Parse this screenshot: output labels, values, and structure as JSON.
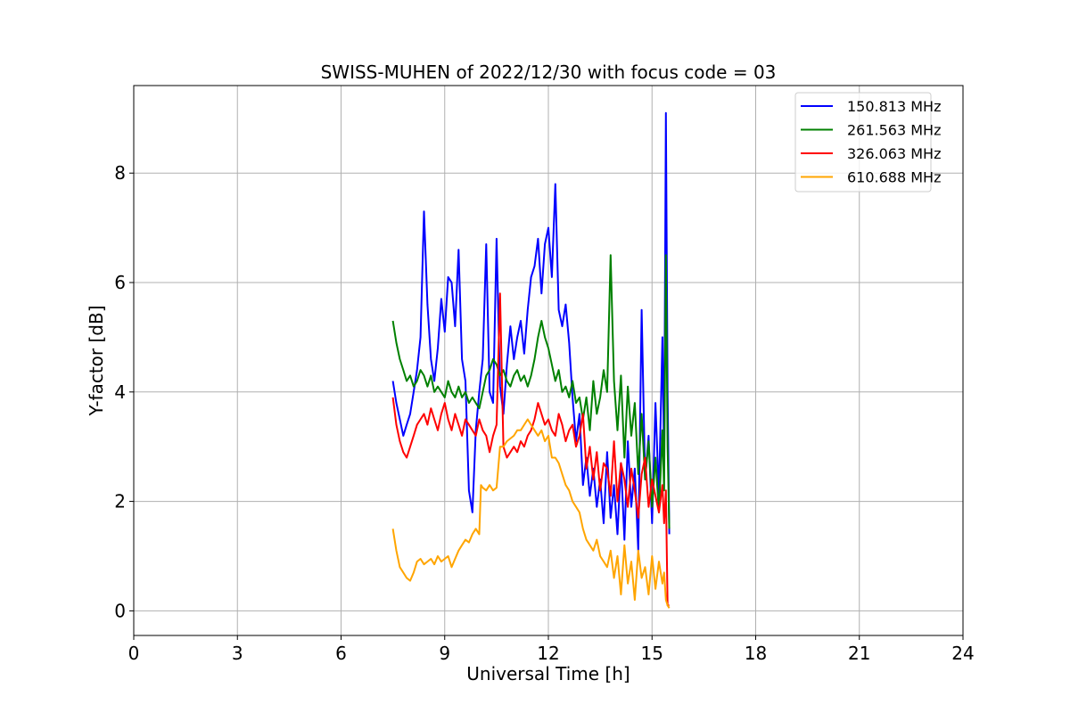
{
  "chart_data": {
    "type": "line",
    "title": "SWISS-MUHEN of 2022/12/30 with focus code = 03",
    "xlabel": "Universal Time [h]",
    "ylabel": "Y-factor [dB]",
    "xlim": [
      0,
      24
    ],
    "ylim": [
      -0.45,
      9.6
    ],
    "xticks": [
      0,
      3,
      6,
      9,
      12,
      15,
      18,
      21,
      24
    ],
    "yticks": [
      0,
      2,
      4,
      6,
      8
    ],
    "grid": true,
    "legend_position": "top-right",
    "series": [
      {
        "name": "150.813 MHz",
        "color": "#0000ff",
        "x": [
          7.5,
          7.6,
          7.7,
          7.8,
          7.9,
          8.0,
          8.1,
          8.2,
          8.3,
          8.4,
          8.5,
          8.6,
          8.7,
          8.8,
          8.9,
          9.0,
          9.1,
          9.2,
          9.3,
          9.4,
          9.5,
          9.6,
          9.7,
          9.8,
          9.9,
          10.0,
          10.1,
          10.2,
          10.3,
          10.4,
          10.5,
          10.6,
          10.7,
          10.8,
          10.9,
          11.0,
          11.1,
          11.2,
          11.3,
          11.4,
          11.5,
          11.6,
          11.7,
          11.8,
          11.9,
          12.0,
          12.1,
          12.2,
          12.3,
          12.4,
          12.5,
          12.6,
          12.7,
          12.8,
          12.9,
          13.0,
          13.1,
          13.2,
          13.3,
          13.4,
          13.5,
          13.6,
          13.7,
          13.8,
          13.9,
          14.0,
          14.1,
          14.2,
          14.3,
          14.4,
          14.5,
          14.6,
          14.7,
          14.8,
          14.9,
          15.0,
          15.1,
          15.2,
          15.3,
          15.35,
          15.4,
          15.45,
          15.5
        ],
        "y": [
          4.2,
          3.8,
          3.5,
          3.2,
          3.4,
          3.6,
          4.0,
          4.4,
          5.0,
          7.3,
          5.6,
          4.6,
          4.2,
          4.8,
          5.7,
          5.1,
          6.1,
          6.0,
          5.2,
          6.6,
          4.6,
          4.2,
          2.2,
          1.8,
          3.3,
          4.0,
          4.6,
          6.7,
          4.0,
          3.8,
          6.8,
          4.1,
          3.6,
          4.5,
          5.2,
          4.6,
          5.0,
          5.3,
          4.7,
          5.5,
          6.1,
          6.3,
          6.8,
          5.8,
          6.7,
          7.0,
          6.1,
          7.8,
          5.5,
          5.2,
          5.6,
          4.9,
          3.9,
          3.1,
          3.6,
          2.3,
          2.8,
          2.1,
          2.6,
          1.9,
          2.4,
          1.6,
          2.9,
          1.7,
          2.3,
          1.4,
          2.7,
          1.3,
          3.1,
          1.9,
          2.6,
          1.1,
          5.5,
          2.4,
          3.2,
          1.6,
          3.8,
          2.1,
          5.0,
          2.7,
          9.1,
          4.0,
          1.4
        ]
      },
      {
        "name": "261.563 MHz",
        "color": "#008000",
        "x": [
          7.5,
          7.6,
          7.7,
          7.8,
          7.9,
          8.0,
          8.1,
          8.2,
          8.3,
          8.4,
          8.5,
          8.6,
          8.7,
          8.8,
          8.9,
          9.0,
          9.1,
          9.2,
          9.3,
          9.4,
          9.5,
          9.6,
          9.7,
          9.8,
          9.9,
          10.0,
          10.1,
          10.2,
          10.3,
          10.4,
          10.5,
          10.6,
          10.7,
          10.8,
          10.9,
          11.0,
          11.1,
          11.2,
          11.3,
          11.4,
          11.5,
          11.6,
          11.7,
          11.8,
          11.9,
          12.0,
          12.1,
          12.2,
          12.3,
          12.4,
          12.5,
          12.6,
          12.7,
          12.8,
          12.9,
          13.0,
          13.1,
          13.2,
          13.3,
          13.4,
          13.5,
          13.6,
          13.7,
          13.8,
          13.9,
          14.0,
          14.1,
          14.2,
          14.3,
          14.4,
          14.5,
          14.6,
          14.7,
          14.8,
          14.9,
          15.0,
          15.1,
          15.2,
          15.3,
          15.35,
          15.4,
          15.45,
          15.5
        ],
        "y": [
          5.3,
          4.9,
          4.6,
          4.4,
          4.2,
          4.3,
          4.1,
          4.2,
          4.4,
          4.3,
          4.1,
          4.3,
          4.0,
          4.1,
          4.0,
          3.9,
          4.2,
          4.0,
          3.9,
          4.1,
          3.9,
          4.0,
          3.8,
          3.9,
          3.8,
          3.7,
          4.0,
          4.3,
          4.4,
          4.6,
          4.5,
          4.3,
          4.4,
          4.2,
          4.1,
          4.3,
          4.4,
          4.2,
          4.3,
          4.1,
          4.3,
          4.6,
          5.0,
          5.3,
          5.0,
          4.8,
          4.5,
          4.2,
          4.4,
          4.0,
          4.1,
          3.9,
          4.2,
          3.8,
          3.9,
          3.5,
          3.9,
          3.3,
          4.2,
          3.6,
          3.9,
          4.4,
          4.0,
          6.5,
          4.2,
          3.3,
          4.3,
          2.8,
          4.1,
          3.2,
          3.8,
          2.5,
          3.6,
          2.4,
          3.1,
          1.9,
          2.8,
          1.8,
          3.3,
          2.2,
          6.5,
          3.0,
          1.5
        ]
      },
      {
        "name": "326.063 MHz",
        "color": "#ff0000",
        "x": [
          7.5,
          7.6,
          7.7,
          7.8,
          7.9,
          8.0,
          8.1,
          8.2,
          8.3,
          8.4,
          8.5,
          8.6,
          8.7,
          8.8,
          8.9,
          9.0,
          9.1,
          9.2,
          9.3,
          9.4,
          9.5,
          9.6,
          9.7,
          9.8,
          9.9,
          10.0,
          10.1,
          10.2,
          10.3,
          10.4,
          10.5,
          10.6,
          10.7,
          10.8,
          10.9,
          11.0,
          11.1,
          11.2,
          11.3,
          11.4,
          11.5,
          11.6,
          11.7,
          11.8,
          11.9,
          12.0,
          12.1,
          12.2,
          12.3,
          12.4,
          12.5,
          12.6,
          12.7,
          12.8,
          12.9,
          13.0,
          13.1,
          13.2,
          13.3,
          13.4,
          13.5,
          13.6,
          13.7,
          13.8,
          13.9,
          14.0,
          14.1,
          14.2,
          14.3,
          14.4,
          14.5,
          14.6,
          14.7,
          14.8,
          14.9,
          15.0,
          15.1,
          15.2,
          15.3,
          15.35,
          15.4,
          15.45,
          15.5
        ],
        "y": [
          3.9,
          3.4,
          3.1,
          2.9,
          2.8,
          3.0,
          3.2,
          3.4,
          3.5,
          3.6,
          3.4,
          3.7,
          3.5,
          3.3,
          3.6,
          3.8,
          3.5,
          3.3,
          3.6,
          3.4,
          3.2,
          3.5,
          3.4,
          3.3,
          3.2,
          3.5,
          3.3,
          3.2,
          2.9,
          3.2,
          3.4,
          5.8,
          3.0,
          2.8,
          2.9,
          3.0,
          2.9,
          3.1,
          3.0,
          3.2,
          3.3,
          3.5,
          3.8,
          3.6,
          3.4,
          3.5,
          3.3,
          3.2,
          3.6,
          3.4,
          3.1,
          3.3,
          3.4,
          3.0,
          3.2,
          3.6,
          2.6,
          3.0,
          2.4,
          2.9,
          2.2,
          2.7,
          2.6,
          2.1,
          3.1,
          2.0,
          2.7,
          2.4,
          1.9,
          2.6,
          2.2,
          1.7,
          2.5,
          2.8,
          1.9,
          2.4,
          2.1,
          1.8,
          2.3,
          1.6,
          2.2,
          0.1,
          0.1
        ]
      },
      {
        "name": "610.688 MHz",
        "color": "#ffa500",
        "x": [
          7.5,
          7.6,
          7.7,
          7.8,
          7.9,
          8.0,
          8.1,
          8.2,
          8.3,
          8.4,
          8.5,
          8.6,
          8.7,
          8.8,
          8.9,
          9.0,
          9.1,
          9.2,
          9.3,
          9.4,
          9.5,
          9.6,
          9.7,
          9.8,
          9.9,
          10.0,
          10.05,
          10.1,
          10.2,
          10.3,
          10.4,
          10.5,
          10.6,
          10.7,
          10.8,
          10.9,
          11.0,
          11.1,
          11.2,
          11.3,
          11.4,
          11.5,
          11.6,
          11.7,
          11.8,
          11.9,
          12.0,
          12.1,
          12.2,
          12.3,
          12.4,
          12.5,
          12.6,
          12.7,
          12.8,
          12.9,
          13.0,
          13.1,
          13.2,
          13.3,
          13.4,
          13.5,
          13.6,
          13.7,
          13.8,
          13.9,
          14.0,
          14.1,
          14.2,
          14.3,
          14.4,
          14.5,
          14.6,
          14.7,
          14.8,
          14.9,
          15.0,
          15.1,
          15.2,
          15.3,
          15.35,
          15.4,
          15.45,
          15.5
        ],
        "y": [
          1.5,
          1.1,
          0.8,
          0.7,
          0.6,
          0.55,
          0.7,
          0.9,
          0.95,
          0.85,
          0.9,
          0.95,
          0.85,
          1.0,
          0.9,
          0.95,
          1.0,
          0.8,
          0.95,
          1.1,
          1.2,
          1.3,
          1.25,
          1.4,
          1.5,
          1.4,
          2.3,
          2.25,
          2.2,
          2.3,
          2.2,
          2.25,
          3.0,
          3.0,
          3.1,
          3.15,
          3.2,
          3.3,
          3.3,
          3.4,
          3.5,
          3.4,
          3.3,
          3.2,
          3.3,
          3.1,
          3.2,
          2.8,
          2.8,
          2.7,
          2.5,
          2.3,
          2.2,
          2.0,
          1.9,
          1.8,
          1.5,
          1.3,
          1.2,
          1.1,
          1.3,
          1.0,
          0.9,
          0.8,
          1.1,
          0.6,
          1.0,
          0.3,
          1.2,
          0.5,
          0.9,
          0.2,
          1.1,
          0.6,
          0.8,
          0.3,
          1.0,
          0.4,
          0.9,
          0.5,
          0.7,
          0.2,
          0.1,
          0.05
        ]
      }
    ]
  }
}
